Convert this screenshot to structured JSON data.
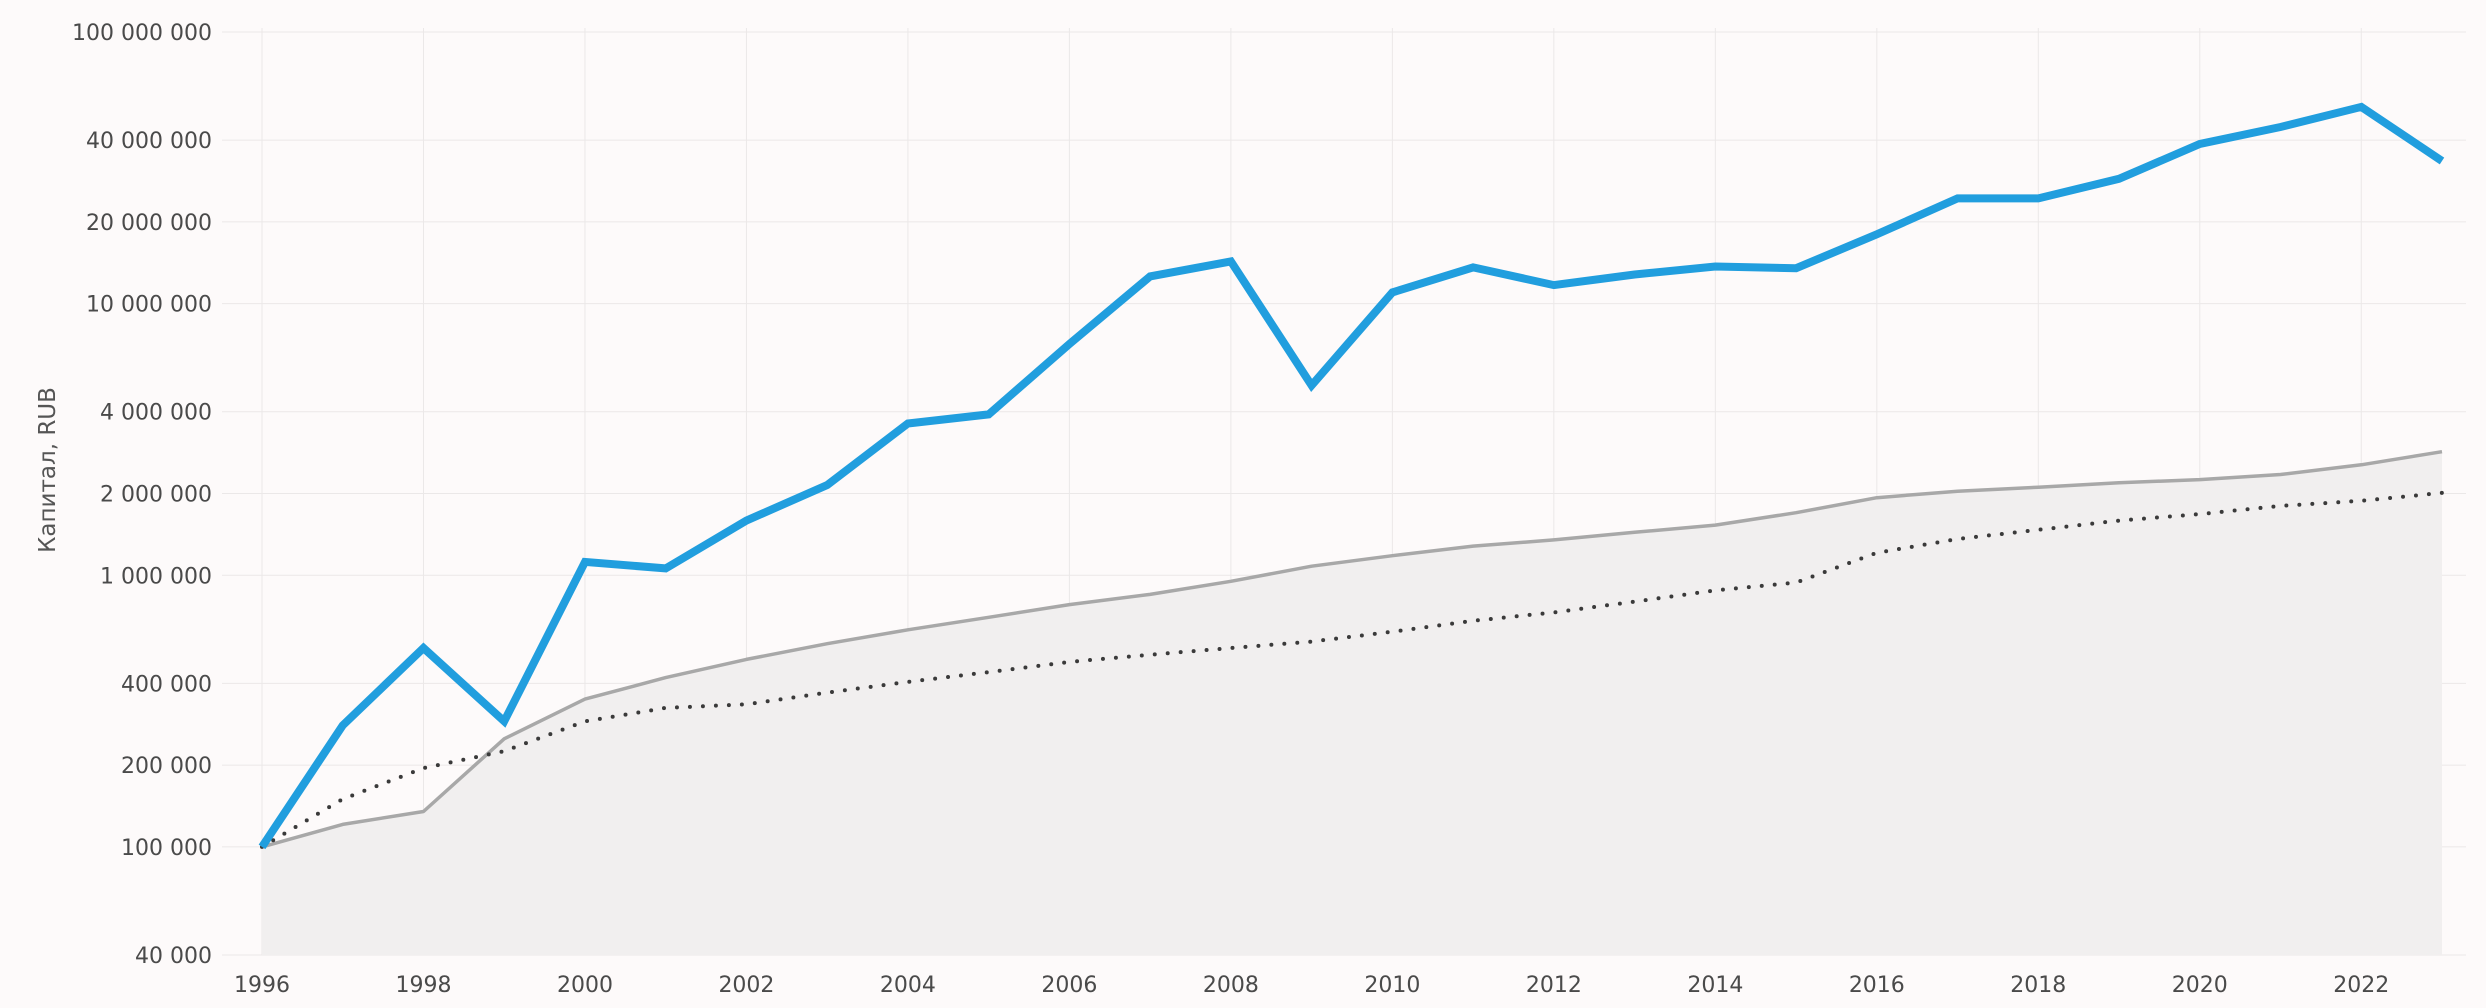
{
  "chart_data": {
    "type": "line",
    "title": "",
    "xlabel": "",
    "ylabel": "Капитал, RUB",
    "y_scale": "log",
    "ylim": [
      40000,
      100000000
    ],
    "xlim": [
      1996,
      2023
    ],
    "y_ticks": [
      40000,
      100000,
      200000,
      400000,
      1000000,
      2000000,
      4000000,
      10000000,
      20000000,
      40000000,
      100000000
    ],
    "y_tick_labels": [
      "40 000",
      "100 000",
      "200 000",
      "400 000",
      "1 000 000",
      "2 000 000",
      "4 000 000",
      "10 000 000",
      "20 000 000",
      "40 000 000",
      "100 000 000"
    ],
    "x_ticks": [
      1996,
      1998,
      2000,
      2002,
      2004,
      2006,
      2008,
      2010,
      2012,
      2014,
      2016,
      2018,
      2020,
      2022
    ],
    "x_tick_labels": [
      "1996",
      "1998",
      "2000",
      "2002",
      "2004",
      "2006",
      "2008",
      "2010",
      "2012",
      "2014",
      "2016",
      "2018",
      "2020",
      "2022"
    ],
    "grid": true,
    "legend": "none",
    "x": [
      1996,
      1997,
      1998,
      1999,
      2000,
      2001,
      2002,
      2003,
      2004,
      2005,
      2006,
      2007,
      2008,
      2009,
      2010,
      2011,
      2012,
      2013,
      2014,
      2015,
      2016,
      2017,
      2018,
      2019,
      2020,
      2021,
      2022,
      2023
    ],
    "series": [
      {
        "style": "area",
        "color": "#a8a8a8",
        "fill": "#f1efef",
        "values": [
          100000,
          121000,
          135000,
          250000,
          350000,
          420000,
          490000,
          560000,
          630000,
          700000,
          780000,
          850000,
          950000,
          1080000,
          1180000,
          1280000,
          1350000,
          1440000,
          1530000,
          1700000,
          1930000,
          2040000,
          2110000,
          2190000,
          2250000,
          2350000,
          2550000,
          2850000
        ]
      },
      {
        "style": "dotted",
        "color": "#3a3a3a",
        "values": [
          100000,
          150000,
          195000,
          225000,
          290000,
          325000,
          335000,
          370000,
          405000,
          440000,
          480000,
          510000,
          540000,
          570000,
          620000,
          680000,
          730000,
          800000,
          880000,
          940000,
          1210000,
          1360000,
          1470000,
          1590000,
          1680000,
          1800000,
          1880000,
          2010000
        ]
      },
      {
        "style": "line",
        "color": "#219ede",
        "values": [
          100000,
          280000,
          540000,
          290000,
          1120000,
          1060000,
          1590000,
          2150000,
          3620000,
          3910000,
          7100000,
          12600000,
          14300000,
          5000000,
          11000000,
          13600000,
          11700000,
          12800000,
          13700000,
          13500000,
          18000000,
          24400000,
          24400000,
          28800000,
          38700000,
          44700000,
          53000000,
          33500000
        ]
      }
    ]
  }
}
